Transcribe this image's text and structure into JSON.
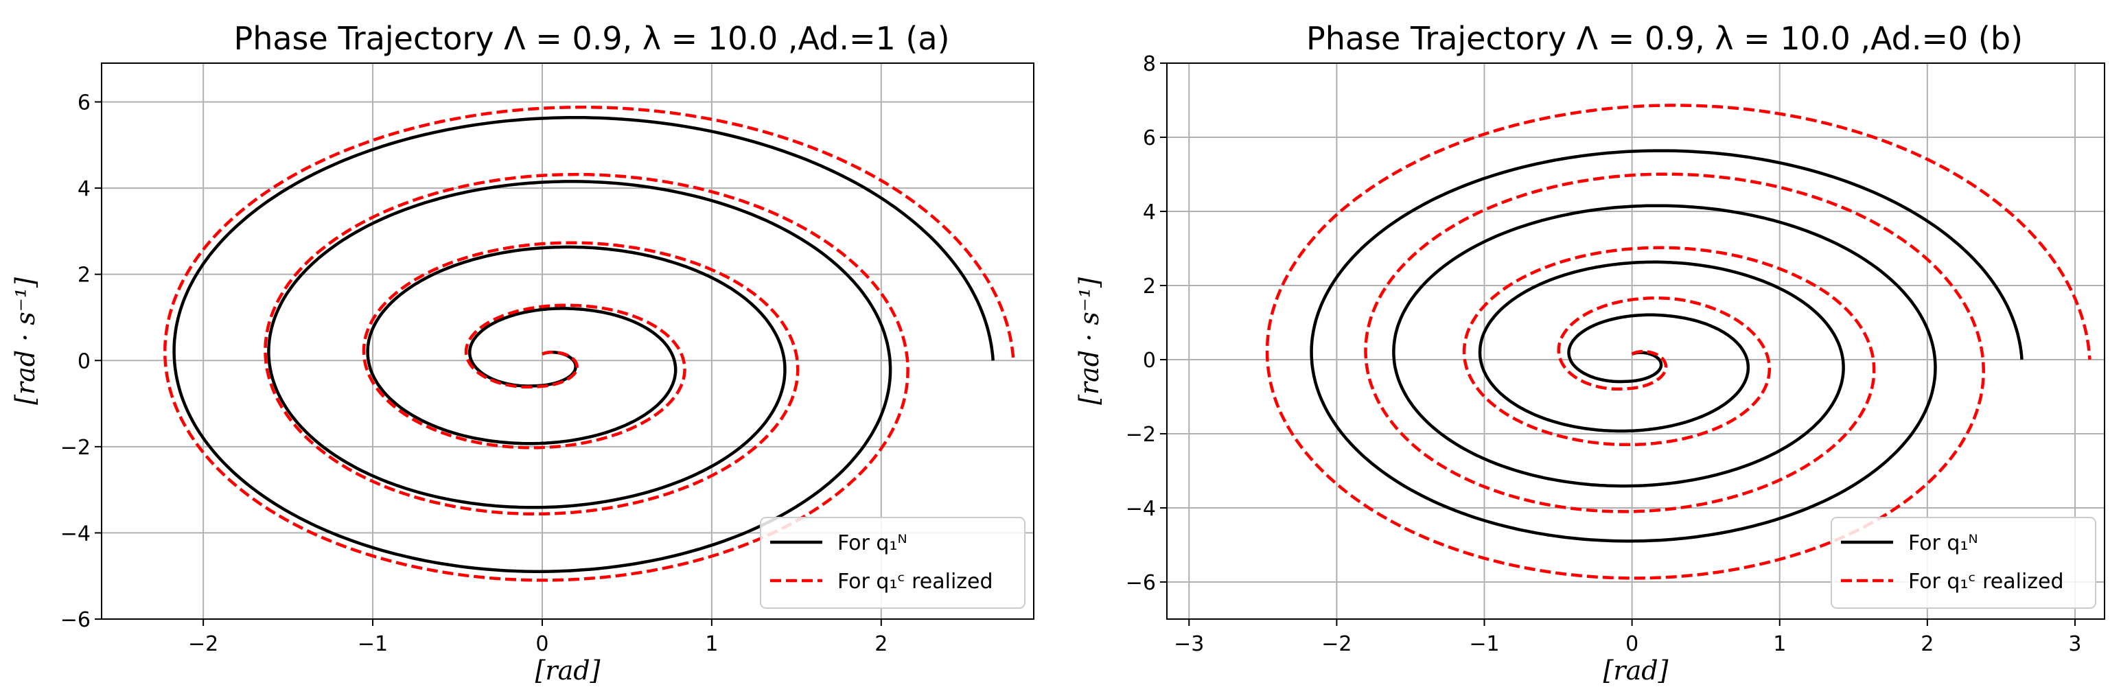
{
  "chart_data": [
    {
      "type": "line",
      "panel": "a",
      "title": "Phase Trajectory Λ = 0.9, λ = 10.0 ,Ad.=1 (a)",
      "xlabel": "[rad]",
      "ylabel": "[rad · s⁻¹]",
      "xlim": [
        -2.6,
        2.9
      ],
      "ylim": [
        -6,
        6.9
      ],
      "xticks": [
        -2,
        -1,
        0,
        1,
        2
      ],
      "yticks": [
        -6,
        -4,
        -2,
        0,
        2,
        4,
        6
      ],
      "xtick_labels": [
        "−2",
        "−1",
        "0",
        "1",
        "2"
      ],
      "ytick_labels": [
        "−6",
        "−4",
        "−2",
        "0",
        "2",
        "4",
        "6"
      ],
      "grid": true,
      "legend": "bottom-right",
      "series": [
        {
          "name": "For q₁ᴺ",
          "color": "#000000",
          "style": "solid",
          "spiral": {
            "x_radii": [
              0.07,
              0.3,
              0.63,
              0.97,
              1.3,
              1.62,
              1.94,
              2.24,
              2.56
            ],
            "y_radii": [
              0.15,
              0.6,
              1.27,
              2.05,
              2.8,
              3.65,
              4.42,
              5.22,
              6.0
            ],
            "x_offset": 0.1,
            "y_offset": 0.0
          }
        },
        {
          "name": "For q₁ᶜ realized",
          "color": "#ff0000",
          "style": "dashed",
          "spiral": {
            "x_radii": [
              0.07,
              0.31,
              0.68,
              1.0,
              1.36,
              1.66,
              2.01,
              2.33,
              2.64
            ],
            "y_radii": [
              0.15,
              0.62,
              1.35,
              2.15,
              2.9,
              3.82,
              4.58,
              5.45,
              6.25
            ],
            "x_offset": 0.14,
            "y_offset": 0.0
          }
        }
      ]
    },
    {
      "type": "line",
      "panel": "b",
      "title": "Phase Trajectory Λ = 0.9, λ = 10.0 ,Ad.=0 (b)",
      "xlabel": "[rad]",
      "ylabel": "[rad · s⁻¹]",
      "xlim": [
        -3.15,
        3.2
      ],
      "ylim": [
        -7,
        8
      ],
      "xticks": [
        -3,
        -2,
        -1,
        0,
        1,
        2,
        3
      ],
      "yticks": [
        -6,
        -4,
        -2,
        0,
        2,
        4,
        6,
        8
      ],
      "xtick_labels": [
        "−3",
        "−2",
        "−1",
        "0",
        "1",
        "2",
        "3"
      ],
      "ytick_labels": [
        "−6",
        "−4",
        "−2",
        "0",
        "2",
        "4",
        "6",
        "8"
      ],
      "grid": true,
      "legend": "bottom-right",
      "series": [
        {
          "name": "For q₁ᴺ",
          "color": "#000000",
          "style": "solid",
          "spiral": {
            "x_radii": [
              0.07,
              0.3,
              0.63,
              0.97,
              1.3,
              1.62,
              1.94,
              2.24,
              2.54
            ],
            "y_radii": [
              0.15,
              0.6,
              1.27,
              2.05,
              2.8,
              3.65,
              4.42,
              5.22,
              6.0
            ],
            "x_offset": 0.1,
            "y_offset": 0.0
          }
        },
        {
          "name": "For q₁ᶜ realized",
          "color": "#ff0000",
          "style": "dashed",
          "spiral": {
            "x_radii": [
              0.07,
              0.35,
              0.75,
              1.1,
              1.45,
              1.85,
              2.2,
              2.6,
              2.93
            ],
            "y_radii": [
              0.15,
              0.8,
              1.75,
              2.4,
              3.2,
              4.45,
              5.3,
              6.3,
              7.35
            ],
            "x_offset": 0.17,
            "y_offset": 0.0
          }
        }
      ]
    }
  ]
}
